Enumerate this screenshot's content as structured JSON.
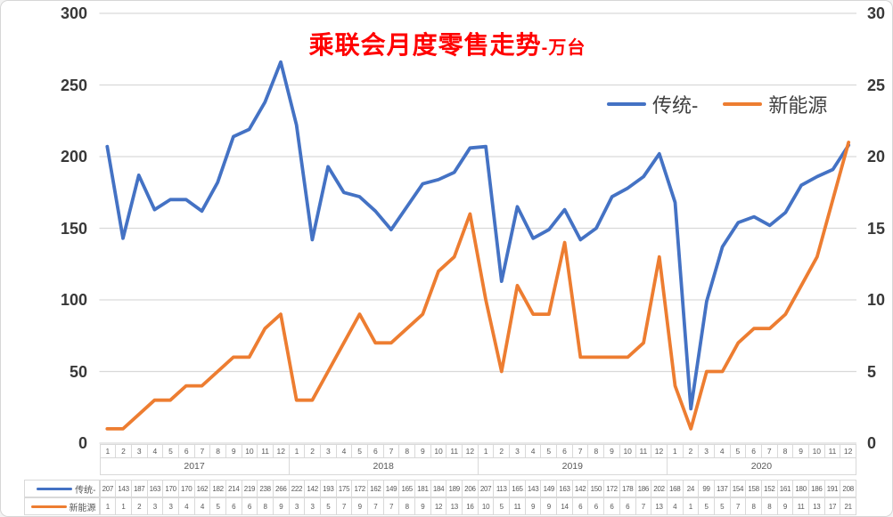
{
  "title": {
    "main": "乘联会月度零售走势",
    "suffix": "-万台",
    "color": "#ff0000"
  },
  "legend": {
    "items": [
      {
        "label": "传统-",
        "color": "#4472c4"
      },
      {
        "label": "新能源",
        "color": "#ed7d31"
      }
    ]
  },
  "axes": {
    "left": {
      "ticks": [
        "300",
        "250",
        "200",
        "150",
        "100",
        "50",
        "0"
      ]
    },
    "right": {
      "ticks": [
        "30",
        "25",
        "20",
        "15",
        "10",
        "5",
        "0"
      ]
    }
  },
  "chart_data": {
    "type": "line",
    "title": "乘联会月度零售走势-万台",
    "grid": true,
    "legend_position": "top-right-inside",
    "left_ylim": [
      0,
      300
    ],
    "right_ylim": [
      0,
      30
    ],
    "years": [
      "2017",
      "2018",
      "2019",
      "2020"
    ],
    "months": [
      "1",
      "2",
      "3",
      "4",
      "5",
      "6",
      "7",
      "8",
      "9",
      "10",
      "11",
      "12"
    ],
    "series": [
      {
        "name": "传统-",
        "axis": "left",
        "color": "#4472c4",
        "values": [
          207,
          143,
          187,
          163,
          170,
          170,
          162,
          182,
          214,
          219,
          238,
          266,
          222,
          142,
          193,
          175,
          172,
          162,
          149,
          165,
          181,
          184,
          189,
          206,
          207,
          113,
          165,
          143,
          149,
          163,
          142,
          150,
          172,
          178,
          186,
          202,
          168,
          24,
          99,
          137,
          154,
          158,
          152,
          161,
          180,
          186,
          191,
          208
        ]
      },
      {
        "name": "新能源",
        "axis": "right",
        "color": "#ed7d31",
        "values": [
          1,
          1,
          2,
          3,
          3,
          4,
          4,
          5,
          6,
          6,
          8,
          9,
          3,
          3,
          5,
          7,
          9,
          7,
          7,
          8,
          9,
          12,
          13,
          16,
          10,
          5,
          11,
          9,
          9,
          14,
          6,
          6,
          6,
          6,
          7,
          13,
          4,
          1,
          5,
          5,
          7,
          8,
          8,
          9,
          11,
          13,
          17,
          21
        ]
      }
    ]
  }
}
